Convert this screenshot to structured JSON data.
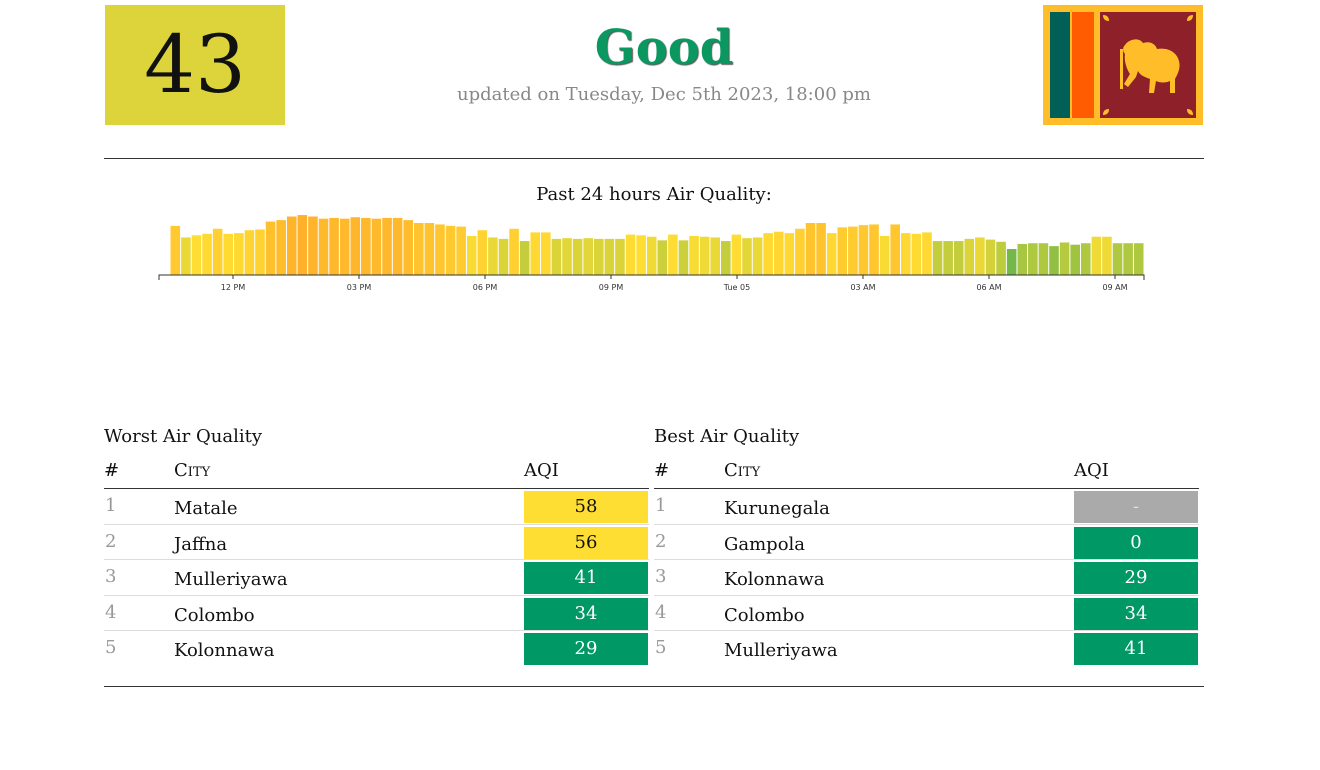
{
  "header": {
    "aqi_value": "43",
    "aqi_color": "#dcd43a",
    "status": "Good",
    "status_color": "#0a9760",
    "updated": "updated on Tuesday, Dec 5th 2023, 18:00 pm",
    "flag_icon": "sri-lanka-flag-icon"
  },
  "chart_data": {
    "type": "bar",
    "title": "Past 24 hours Air Quality:",
    "x_tick_labels": [
      "12 PM",
      "03 PM",
      "06 PM",
      "09 PM",
      "Tue 05",
      "03 AM",
      "06 AM",
      "09 AM"
    ],
    "values": [
      68,
      52,
      55,
      57,
      64,
      57,
      58,
      62,
      63,
      74,
      76,
      81,
      83,
      81,
      78,
      79,
      78,
      80,
      79,
      78,
      79,
      79,
      76,
      72,
      72,
      70,
      68,
      67,
      54,
      62,
      52,
      50,
      64,
      47,
      59,
      59,
      50,
      51,
      50,
      51,
      50,
      50,
      50,
      56,
      55,
      53,
      48,
      56,
      48,
      54,
      53,
      52,
      47,
      56,
      51,
      52,
      58,
      60,
      58,
      64,
      72,
      72,
      58,
      66,
      67,
      69,
      70,
      54,
      70,
      58,
      57,
      59,
      47,
      47,
      47,
      50,
      52,
      49,
      46,
      36,
      43,
      44,
      44,
      40,
      45,
      42,
      44,
      53,
      53,
      44,
      44,
      44
    ],
    "color_scale": {
      "good": "#009966",
      "moderate": "#ffde33",
      "sensitive": "#ff9933"
    }
  },
  "worst": {
    "title": "Worst Air Quality",
    "col_rank": "#",
    "col_city": "City",
    "col_aqi": "AQI",
    "rows": [
      {
        "rank": "1",
        "city": "Matale",
        "aqi": "58",
        "bg": "#ffde33",
        "fg": "#111111"
      },
      {
        "rank": "2",
        "city": "Jaffna",
        "aqi": "56",
        "bg": "#ffde33",
        "fg": "#111111"
      },
      {
        "rank": "3",
        "city": "Mulleriyawa",
        "aqi": "41",
        "bg": "#009966",
        "fg": "#ffffff"
      },
      {
        "rank": "4",
        "city": "Colombo",
        "aqi": "34",
        "bg": "#009966",
        "fg": "#ffffff"
      },
      {
        "rank": "5",
        "city": "Kolonnawa",
        "aqi": "29",
        "bg": "#009966",
        "fg": "#ffffff"
      }
    ]
  },
  "best": {
    "title": "Best Air Quality",
    "col_rank": "#",
    "col_city": "City",
    "col_aqi": "AQI",
    "rows": [
      {
        "rank": "1",
        "city": "Kurunegala",
        "aqi": "-",
        "bg": "#aaaaaa",
        "fg": "#dddddd"
      },
      {
        "rank": "2",
        "city": "Gampola",
        "aqi": "0",
        "bg": "#009966",
        "fg": "#ffffff"
      },
      {
        "rank": "3",
        "city": "Kolonnawa",
        "aqi": "29",
        "bg": "#009966",
        "fg": "#ffffff"
      },
      {
        "rank": "4",
        "city": "Colombo",
        "aqi": "34",
        "bg": "#009966",
        "fg": "#ffffff"
      },
      {
        "rank": "5",
        "city": "Mulleriyawa",
        "aqi": "41",
        "bg": "#009966",
        "fg": "#ffffff"
      }
    ]
  }
}
